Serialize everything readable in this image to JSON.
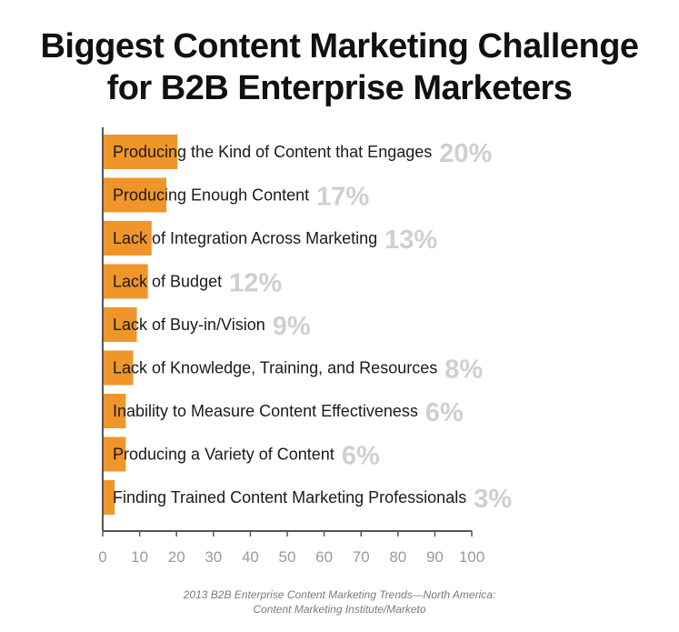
{
  "chart_data": {
    "type": "bar",
    "orientation": "horizontal",
    "title": [
      "Biggest Content Marketing Challenge",
      "for B2B Enterprise Marketers"
    ],
    "categories": [
      "Producing the Kind of Content that Engages",
      "Producing Enough Content",
      "Lack of Integration Across Marketing",
      "Lack of Budget",
      "Lack of Buy-in/Vision",
      "Lack of Knowledge, Training, and Resources",
      "Inability to Measure Content Effectiveness",
      "Producing a Variety of Content",
      "Finding Trained Content Marketing Professionals"
    ],
    "values": [
      20,
      17,
      13,
      12,
      9,
      8,
      6,
      6,
      3
    ],
    "value_labels": [
      "20%",
      "17%",
      "13%",
      "12%",
      "9%",
      "8%",
      "6%",
      "6%",
      "3%"
    ],
    "xlim": [
      0,
      100
    ],
    "xticks": [
      "0",
      "10",
      "20",
      "30",
      "40",
      "50",
      "60",
      "70",
      "80",
      "90",
      "100"
    ],
    "grid": false,
    "colors": {
      "bar": "#f0952a",
      "value_label": "#cfcfcf",
      "axis": "#555555",
      "tick_label": "#9a9a9a"
    }
  },
  "source": {
    "line1": "2013 B2B Enterprise Content Marketing Trends—North America:",
    "line2": "Content Marketing Institute/Marketo"
  }
}
